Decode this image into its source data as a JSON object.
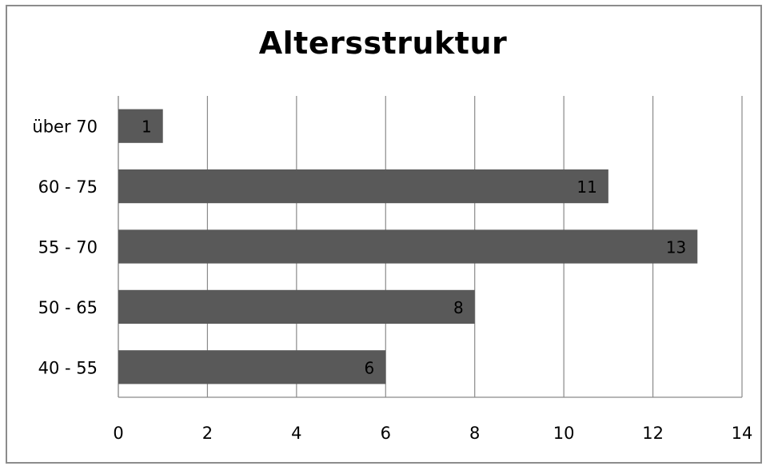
{
  "chart_data": {
    "type": "bar",
    "orientation": "horizontal",
    "title": "Altersstruktur",
    "xlabel": "",
    "ylabel": "",
    "categories": [
      "über 70",
      "60 - 75",
      "55 - 70",
      "50 - 65",
      "40 - 55"
    ],
    "values": [
      1,
      11,
      13,
      8,
      6
    ],
    "xlim": [
      0,
      14
    ],
    "x_ticks": [
      "0",
      "2",
      "4",
      "6",
      "8",
      "10",
      "12",
      "14"
    ],
    "grid": "vertical",
    "legend": "none",
    "data_labels": "inside-end",
    "bar_color": "#595959"
  }
}
